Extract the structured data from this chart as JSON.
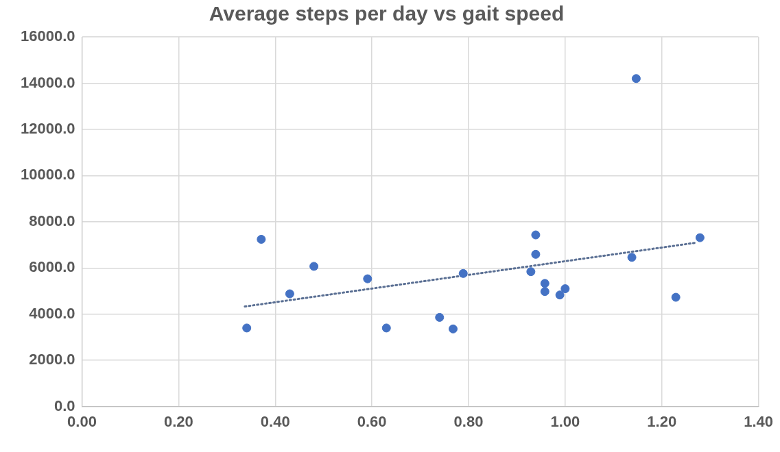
{
  "chart_data": {
    "type": "scatter",
    "title": "Average steps per day vs gait speed",
    "xlim": [
      0,
      1.4
    ],
    "xticks": [
      {
        "value": 0,
        "label": "0.00"
      },
      {
        "value": 0.2,
        "label": "0.20"
      },
      {
        "value": 0.4,
        "label": "0.40"
      },
      {
        "value": 0.6,
        "label": "0.60"
      },
      {
        "value": 0.8,
        "label": "0.80"
      },
      {
        "value": 1,
        "label": "1.00"
      },
      {
        "value": 1.2,
        "label": "1.20"
      },
      {
        "value": 1.4,
        "label": "1.40"
      }
    ],
    "ylim": [
      0,
      16000
    ],
    "yticks": [
      {
        "value": 0,
        "label": "0.0"
      },
      {
        "value": 2000,
        "label": "2000.0"
      },
      {
        "value": 4000,
        "label": "4000.0"
      },
      {
        "value": 6000,
        "label": "6000.0"
      },
      {
        "value": 8000,
        "label": "8000.0"
      },
      {
        "value": 10000,
        "label": "10000.0"
      },
      {
        "value": 12000,
        "label": "12000.0"
      },
      {
        "value": 14000,
        "label": "14000.0"
      },
      {
        "value": 16000,
        "label": "16000.0"
      }
    ],
    "grid": true,
    "marker": "circle",
    "series": [
      {
        "type": "scatter",
        "color": "#4472c4",
        "x": [
          0.341,
          0.371,
          0.43,
          0.48,
          0.591,
          0.63,
          0.74,
          0.768,
          0.789,
          0.929,
          0.939,
          0.939,
          0.958,
          0.958,
          0.989,
          1.0,
          1.138,
          1.147,
          1.229,
          1.279
        ],
        "values": [
          3400,
          7240,
          4880,
          6070,
          5530,
          3400,
          3860,
          3360,
          5760,
          5840,
          7430,
          6590,
          5330,
          4980,
          4830,
          5100,
          6460,
          14200,
          4730,
          7310
        ]
      },
      {
        "type": "line",
        "color": "#5a6f93",
        "line_style": "dotted",
        "marker": "none",
        "x": [
          0.337,
          1.273
        ],
        "values": [
          4330,
          7100
        ]
      }
    ]
  }
}
